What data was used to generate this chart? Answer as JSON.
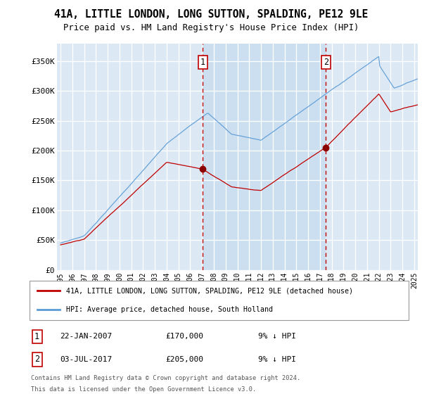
{
  "title": "41A, LITTLE LONDON, LONG SUTTON, SPALDING, PE12 9LE",
  "subtitle": "Price paid vs. HM Land Registry's House Price Index (HPI)",
  "legend_line1": "41A, LITTLE LONDON, LONG SUTTON, SPALDING, PE12 9LE (detached house)",
  "legend_line2": "HPI: Average price, detached house, South Holland",
  "annotation1_label": "1",
  "annotation1_date": "22-JAN-2007",
  "annotation1_price": "£170,000",
  "annotation1_hpi": "9% ↓ HPI",
  "annotation2_label": "2",
  "annotation2_date": "03-JUL-2017",
  "annotation2_price": "£205,000",
  "annotation2_hpi": "9% ↓ HPI",
  "footer1": "Contains HM Land Registry data © Crown copyright and database right 2024.",
  "footer2": "This data is licensed under the Open Government Licence v3.0.",
  "hpi_color": "#5b9bd5",
  "price_color": "#c00000",
  "vline_color": "#c00000",
  "dot_color": "#8b0000",
  "background_color": "#dce9f5",
  "highlight_color": "#cce0f0",
  "ylim_min": 0,
  "ylim_max": 380000,
  "yticks": [
    0,
    50000,
    100000,
    150000,
    200000,
    250000,
    300000,
    350000
  ],
  "ytick_labels": [
    "£0",
    "£50K",
    "£100K",
    "£150K",
    "£200K",
    "£250K",
    "£300K",
    "£350K"
  ],
  "sale1_x": 2007.056,
  "sale1_y": 170000,
  "sale2_x": 2017.503,
  "sale2_y": 205000,
  "xmin": 1994.7,
  "xmax": 2025.3
}
